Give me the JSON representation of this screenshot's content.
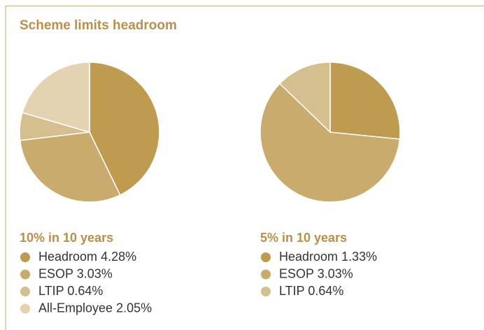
{
  "title": "Scheme limits headroom",
  "chart_data": [
    {
      "type": "pie",
      "title": "10% in 10 years",
      "categories": [
        "Headroom",
        "ESOP",
        "LTIP",
        "All-Employee"
      ],
      "values": [
        4.28,
        3.03,
        0.64,
        2.05
      ],
      "value_labels": [
        "4.28%",
        "3.03%",
        "0.64%",
        "2.05%"
      ],
      "colors": [
        "#bf9b50",
        "#c9ab6e",
        "#d6bf8f",
        "#e3d3b0"
      ]
    },
    {
      "type": "pie",
      "title": "5% in 10 years",
      "categories": [
        "Headroom",
        "ESOP",
        "LTIP"
      ],
      "values": [
        1.33,
        3.03,
        0.64
      ],
      "value_labels": [
        "1.33%",
        "3.03%",
        "0.64%"
      ],
      "colors": [
        "#bf9b50",
        "#c9ab6e",
        "#d6bf8f"
      ]
    }
  ]
}
